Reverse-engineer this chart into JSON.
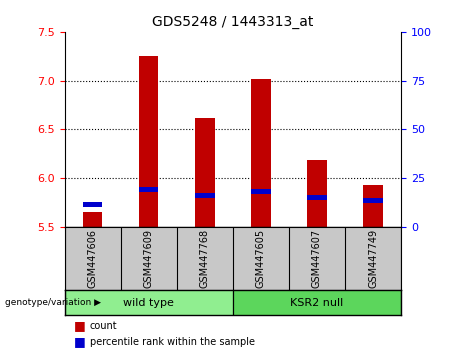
{
  "title": "GDS5248 / 1443313_at",
  "samples": [
    "GSM447606",
    "GSM447609",
    "GSM447768",
    "GSM447605",
    "GSM447607",
    "GSM447749"
  ],
  "red_values": [
    5.65,
    7.25,
    6.62,
    7.02,
    6.18,
    5.93
  ],
  "blue_values": [
    5.73,
    5.88,
    5.82,
    5.86,
    5.8,
    5.77
  ],
  "y_min": 5.5,
  "y_max": 7.5,
  "y_ticks_left": [
    5.5,
    6.0,
    6.5,
    7.0,
    7.5
  ],
  "y_ticks_right": [
    0,
    25,
    50,
    75,
    100
  ],
  "bar_color": "#c00000",
  "blue_color": "#0000cc",
  "groups": [
    {
      "label": "wild type",
      "indices": [
        0,
        1,
        2
      ],
      "color": "#90ee90"
    },
    {
      "label": "KSR2 null",
      "indices": [
        3,
        4,
        5
      ],
      "color": "#5cd65c"
    }
  ],
  "genotype_label": "genotype/variation",
  "legend_count": "count",
  "legend_percentile": "percentile rank within the sample",
  "bar_width": 0.35,
  "background_label_row": "#c8c8c8",
  "title_fontsize": 10,
  "tick_fontsize": 8,
  "label_fontsize": 7,
  "geno_fontsize": 8
}
